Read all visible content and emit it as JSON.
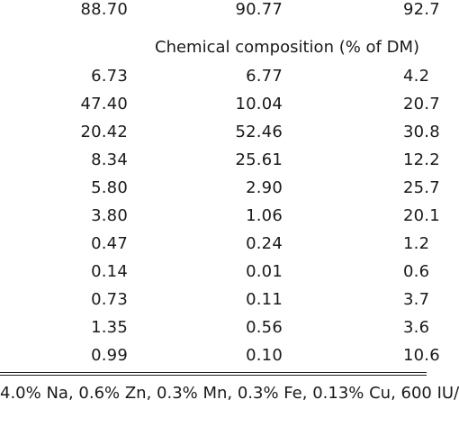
{
  "top_row": {
    "col1": "88.70",
    "col2": "90.77",
    "col3": "92.7"
  },
  "section_heading": "Chemical composition (% of DM)",
  "rows": [
    {
      "col1": "6.73",
      "col2": "6.77",
      "col3": "4.2"
    },
    {
      "col1": "47.40",
      "col2": "10.04",
      "col3": "20.7"
    },
    {
      "col1": "20.42",
      "col2": "52.46",
      "col3": "30.8"
    },
    {
      "col1": "8.34",
      "col2": "25.61",
      "col3": "12.2"
    },
    {
      "col1": "5.80",
      "col2": "2.90",
      "col3": "25.7"
    },
    {
      "col1": "3.80",
      "col2": "1.06",
      "col3": "20.1"
    },
    {
      "col1": "0.47",
      "col2": "0.24",
      "col3": "1.2"
    },
    {
      "col1": "0.14",
      "col2": "0.01",
      "col3": "0.6"
    },
    {
      "col1": "0.73",
      "col2": "0.11",
      "col3": "3.7"
    },
    {
      "col1": "1.35",
      "col2": "0.56",
      "col3": "3.6"
    },
    {
      "col1": "0.99",
      "col2": "0.10",
      "col3": "10.6"
    }
  ],
  "footnote": "4.0% Na, 0.6% Zn, 0.3% Mn, 0.3% Fe, 0.13% Cu, 600 IU/"
}
